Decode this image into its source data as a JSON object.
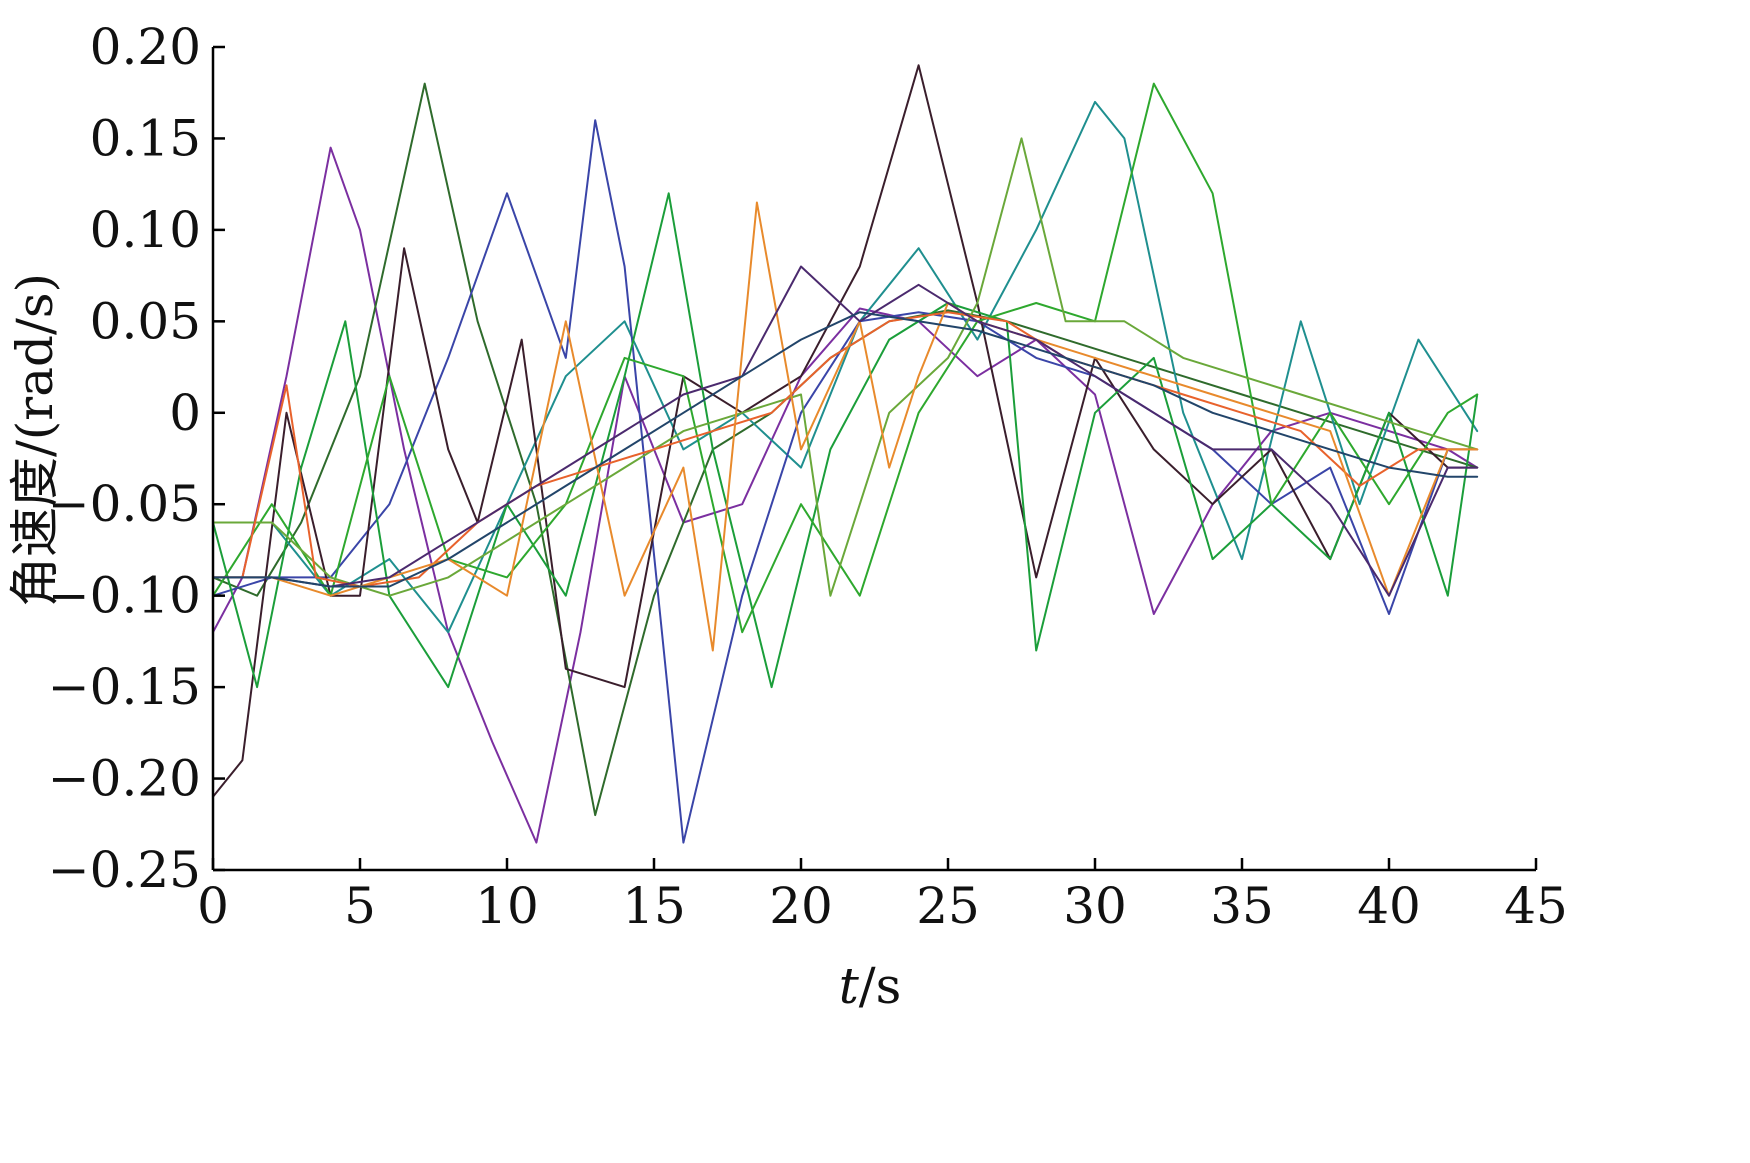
{
  "chart_data": {
    "type": "line",
    "title": "",
    "xlabel_italic": "t",
    "xlabel_rest": "/s",
    "ylabel": "角速度/(rad/s)",
    "xlim": [
      0,
      45
    ],
    "ylim": [
      -0.25,
      0.2
    ],
    "xticks": [
      "0",
      "5",
      "10",
      "15",
      "20",
      "25",
      "30",
      "35",
      "40",
      "45"
    ],
    "yticks": [
      "0.20",
      "0.15",
      "0.10",
      "0.05",
      "0",
      "−0.05",
      "−0.10",
      "−0.15",
      "−0.20",
      "−0.25"
    ],
    "xtick_values": [
      0,
      5,
      10,
      15,
      20,
      25,
      30,
      35,
      40,
      45
    ],
    "ytick_values": [
      0.2,
      0.15,
      0.1,
      0.05,
      0,
      -0.05,
      -0.1,
      -0.15,
      -0.2,
      -0.25
    ],
    "grid": false,
    "legend": "none",
    "series": [
      {
        "color": "#7b2fa0",
        "x": [
          0,
          1,
          2.5,
          4,
          5,
          6.5,
          8,
          9.5,
          11,
          12.5,
          14,
          16,
          18,
          20,
          22,
          24,
          26,
          28,
          30,
          32,
          34,
          36,
          38,
          40,
          42,
          43
        ],
        "y": [
          -0.12,
          -0.09,
          0.02,
          0.145,
          0.1,
          -0.02,
          -0.12,
          -0.18,
          -0.235,
          -0.12,
          0.02,
          -0.06,
          -0.05,
          0.02,
          0.057,
          0.05,
          0.02,
          0.04,
          0.01,
          -0.11,
          -0.05,
          -0.01,
          0.0,
          -0.01,
          -0.02,
          -0.03
        ]
      },
      {
        "color": "#2f6b2c",
        "x": [
          0,
          1.5,
          3,
          5,
          7.2,
          9,
          11,
          13,
          15,
          17,
          19,
          21,
          23,
          25,
          27,
          29,
          31,
          33,
          35,
          37,
          39,
          41,
          43
        ],
        "y": [
          -0.09,
          -0.1,
          -0.06,
          0.02,
          0.18,
          0.05,
          -0.05,
          -0.22,
          -0.1,
          -0.02,
          0.0,
          0.03,
          0.05,
          0.056,
          0.05,
          0.04,
          0.03,
          0.02,
          0.01,
          0.0,
          -0.01,
          -0.02,
          -0.03
        ]
      },
      {
        "color": "#1f8f8f",
        "x": [
          0,
          2,
          4,
          6,
          8,
          10,
          12,
          14,
          16,
          18,
          20,
          22,
          24,
          26,
          28,
          30,
          31,
          33,
          35,
          37,
          39,
          41,
          43
        ],
        "y": [
          -0.06,
          -0.06,
          -0.1,
          -0.08,
          -0.12,
          -0.05,
          0.02,
          0.05,
          -0.02,
          0.0,
          -0.03,
          0.05,
          0.09,
          0.04,
          0.1,
          0.17,
          0.15,
          0.0,
          -0.08,
          0.05,
          -0.05,
          0.04,
          -0.01
        ]
      },
      {
        "color": "#3a45a8",
        "x": [
          0,
          2,
          4,
          6,
          8,
          10,
          12,
          13,
          14,
          16,
          18,
          20,
          22,
          24,
          26,
          28,
          30,
          32,
          34,
          36,
          38,
          40,
          42,
          43
        ],
        "y": [
          -0.1,
          -0.09,
          -0.09,
          -0.05,
          0.03,
          0.12,
          0.03,
          0.16,
          0.08,
          -0.235,
          -0.1,
          0.0,
          0.05,
          0.055,
          0.05,
          0.03,
          0.02,
          0.0,
          -0.02,
          -0.05,
          -0.03,
          -0.11,
          -0.02,
          -0.02
        ]
      },
      {
        "color": "#3a1e2c",
        "x": [
          0,
          1,
          2.5,
          4,
          5,
          6.5,
          8,
          9,
          10.5,
          12,
          14,
          16,
          18,
          20,
          22,
          24,
          26,
          28,
          30,
          32,
          34,
          36,
          38,
          40,
          42,
          43
        ],
        "y": [
          -0.21,
          -0.19,
          0.0,
          -0.1,
          -0.1,
          0.09,
          -0.02,
          -0.06,
          0.04,
          -0.14,
          -0.15,
          0.02,
          0.0,
          0.02,
          0.08,
          0.19,
          0.06,
          -0.09,
          0.03,
          -0.02,
          -0.05,
          -0.02,
          -0.08,
          0.0,
          -0.03,
          -0.03
        ]
      },
      {
        "color": "#1b9e3a",
        "x": [
          0,
          1.5,
          3,
          4.5,
          6,
          8,
          10,
          12,
          14,
          15.5,
          17,
          19,
          21,
          23,
          25,
          27,
          28,
          30,
          32,
          34,
          36,
          38,
          40,
          42,
          43
        ],
        "y": [
          -0.06,
          -0.15,
          -0.03,
          0.05,
          -0.1,
          -0.15,
          -0.05,
          -0.1,
          0.02,
          0.12,
          -0.02,
          -0.15,
          -0.02,
          0.04,
          0.06,
          0.05,
          -0.13,
          0.0,
          0.03,
          -0.08,
          -0.05,
          -0.08,
          0.0,
          -0.1,
          0.01
        ]
      },
      {
        "color": "#2ea82e",
        "x": [
          0,
          2,
          4,
          6,
          8,
          10,
          12,
          14,
          16,
          18,
          20,
          22,
          24,
          26,
          28,
          30,
          32,
          34,
          36,
          38,
          40,
          42,
          43
        ],
        "y": [
          -0.1,
          -0.05,
          -0.1,
          0.02,
          -0.08,
          -0.09,
          -0.05,
          0.03,
          0.02,
          -0.12,
          -0.05,
          -0.1,
          0.0,
          0.05,
          0.06,
          0.05,
          0.18,
          0.12,
          -0.05,
          0.0,
          -0.05,
          0.0,
          0.01
        ]
      },
      {
        "color": "#6aa83a",
        "x": [
          0,
          2,
          4,
          6,
          8,
          10,
          12,
          14,
          16,
          18,
          20,
          21,
          23,
          25,
          26,
          27.5,
          29,
          31,
          33,
          35,
          37,
          39,
          41,
          43
        ],
        "y": [
          -0.06,
          -0.06,
          -0.09,
          -0.1,
          -0.09,
          -0.07,
          -0.05,
          -0.03,
          -0.01,
          0.0,
          0.01,
          -0.1,
          0.0,
          0.03,
          0.06,
          0.15,
          0.05,
          0.05,
          0.03,
          0.02,
          0.01,
          0.0,
          -0.01,
          -0.02
        ]
      },
      {
        "color": "#e8622c",
        "x": [
          0,
          1,
          2.5,
          3.5,
          5,
          7,
          9,
          11,
          13,
          15,
          17,
          19,
          21,
          23,
          25,
          27,
          29,
          31,
          33,
          35,
          37,
          39,
          41,
          43
        ],
        "y": [
          -0.09,
          -0.09,
          0.015,
          -0.09,
          -0.095,
          -0.09,
          -0.06,
          -0.04,
          -0.03,
          -0.02,
          -0.01,
          0.0,
          0.03,
          0.05,
          0.055,
          0.05,
          0.03,
          0.02,
          0.01,
          0.0,
          -0.01,
          -0.04,
          -0.02,
          -0.02
        ]
      },
      {
        "color": "#e88a2c",
        "x": [
          0,
          2,
          4,
          6,
          8,
          10,
          12,
          14,
          16,
          17,
          18.5,
          20,
          22,
          23,
          24,
          25,
          26,
          28,
          30,
          32,
          34,
          36,
          38,
          40,
          42,
          43
        ],
        "y": [
          -0.09,
          -0.09,
          -0.1,
          -0.09,
          -0.08,
          -0.1,
          0.05,
          -0.1,
          -0.03,
          -0.13,
          0.115,
          -0.02,
          0.05,
          -0.03,
          0.02,
          0.06,
          0.05,
          0.04,
          0.03,
          0.02,
          0.01,
          0.0,
          -0.01,
          -0.1,
          -0.02,
          -0.02
        ]
      },
      {
        "color": "#4b2a6e",
        "x": [
          0,
          2,
          4,
          6,
          8,
          10,
          12,
          14,
          16,
          18,
          20,
          22,
          24,
          26,
          28,
          30,
          32,
          34,
          36,
          38,
          40,
          42,
          43
        ],
        "y": [
          -0.09,
          -0.09,
          -0.095,
          -0.09,
          -0.07,
          -0.05,
          -0.03,
          -0.01,
          0.01,
          0.02,
          0.08,
          0.05,
          0.07,
          0.05,
          0.04,
          0.02,
          0.0,
          -0.02,
          -0.02,
          -0.05,
          -0.1,
          -0.03,
          -0.03
        ]
      },
      {
        "color": "#22456a",
        "x": [
          0,
          2,
          4,
          6,
          8,
          10,
          12,
          14,
          16,
          18,
          20,
          22,
          24,
          26,
          28,
          30,
          32,
          34,
          36,
          38,
          40,
          42,
          43
        ],
        "y": [
          -0.09,
          -0.09,
          -0.095,
          -0.095,
          -0.08,
          -0.06,
          -0.04,
          -0.02,
          0.0,
          0.02,
          0.04,
          0.055,
          0.05,
          0.045,
          0.035,
          0.025,
          0.015,
          0.0,
          -0.01,
          -0.02,
          -0.03,
          -0.035,
          -0.035
        ]
      }
    ]
  }
}
